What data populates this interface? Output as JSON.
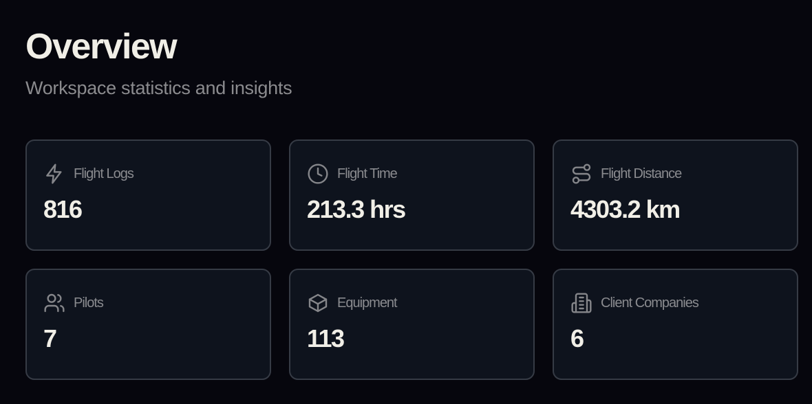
{
  "header": {
    "title": "Overview",
    "subtitle": "Workspace statistics and insights"
  },
  "stats": [
    {
      "icon": "lightning-icon",
      "label": "Flight Logs",
      "value": "816"
    },
    {
      "icon": "clock-icon",
      "label": "Flight Time",
      "value": "213.3 hrs"
    },
    {
      "icon": "route-icon",
      "label": "Flight Distance",
      "value": "4303.2 km"
    },
    {
      "icon": "users-icon",
      "label": "Pilots",
      "value": "7"
    },
    {
      "icon": "box-icon",
      "label": "Equipment",
      "value": "113"
    },
    {
      "icon": "building-icon",
      "label": "Client Companies",
      "value": "6"
    }
  ]
}
